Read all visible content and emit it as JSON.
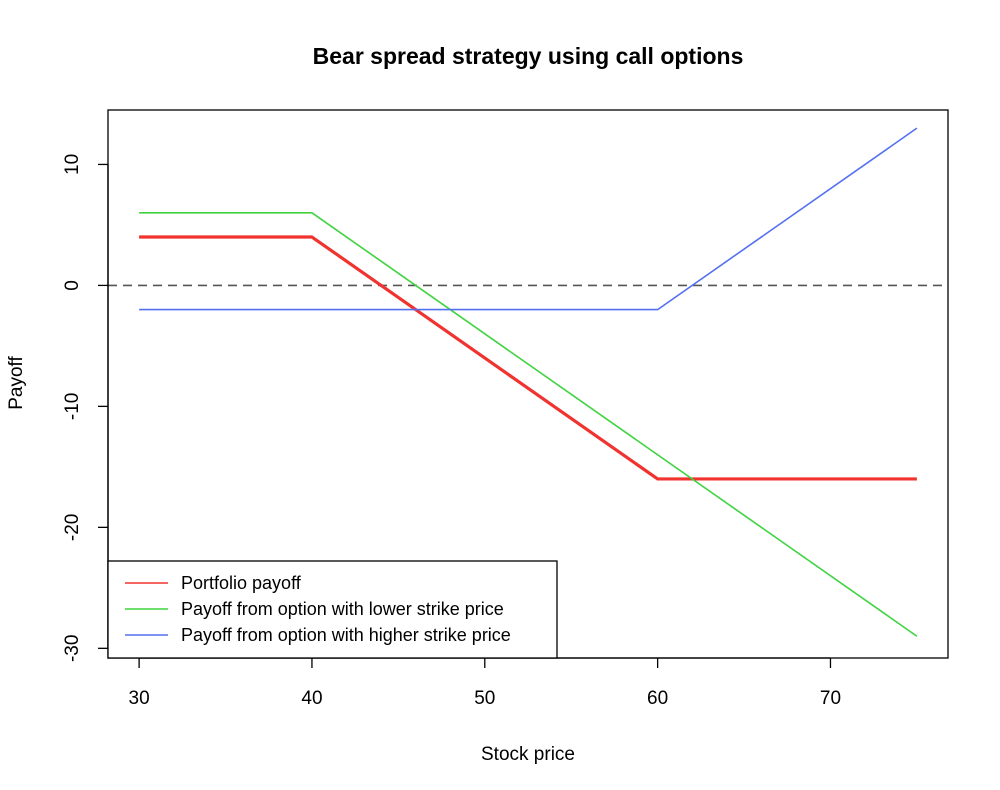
{
  "chart_data": {
    "type": "line",
    "title": "Bear spread strategy using call options",
    "xlabel": "Stock price",
    "ylabel": "Payoff",
    "xlim": [
      28.2,
      76.8
    ],
    "ylim": [
      -30.8,
      14.5
    ],
    "x_ticks": [
      30,
      40,
      50,
      60,
      70
    ],
    "y_ticks": [
      -30,
      -20,
      -10,
      0,
      10
    ],
    "grid": false,
    "legend_position": "bottom-left",
    "reference_line": {
      "y": 0,
      "style": "dashed",
      "color": "#555555"
    },
    "series": [
      {
        "name": "Portfolio payoff",
        "color": "#f0332f",
        "thick": true,
        "x": [
          30,
          40,
          60,
          75
        ],
        "y": [
          4,
          4,
          -16,
          -16
        ]
      },
      {
        "name": "Payoff from option with lower strike price",
        "color": "#3fd33f",
        "thick": false,
        "x": [
          30,
          40,
          75
        ],
        "y": [
          6,
          6,
          -29
        ]
      },
      {
        "name": "Payoff from option with higher strike price",
        "color": "#5470f0",
        "thick": false,
        "x": [
          30,
          60,
          75
        ],
        "y": [
          -2,
          -2,
          13
        ]
      }
    ]
  }
}
